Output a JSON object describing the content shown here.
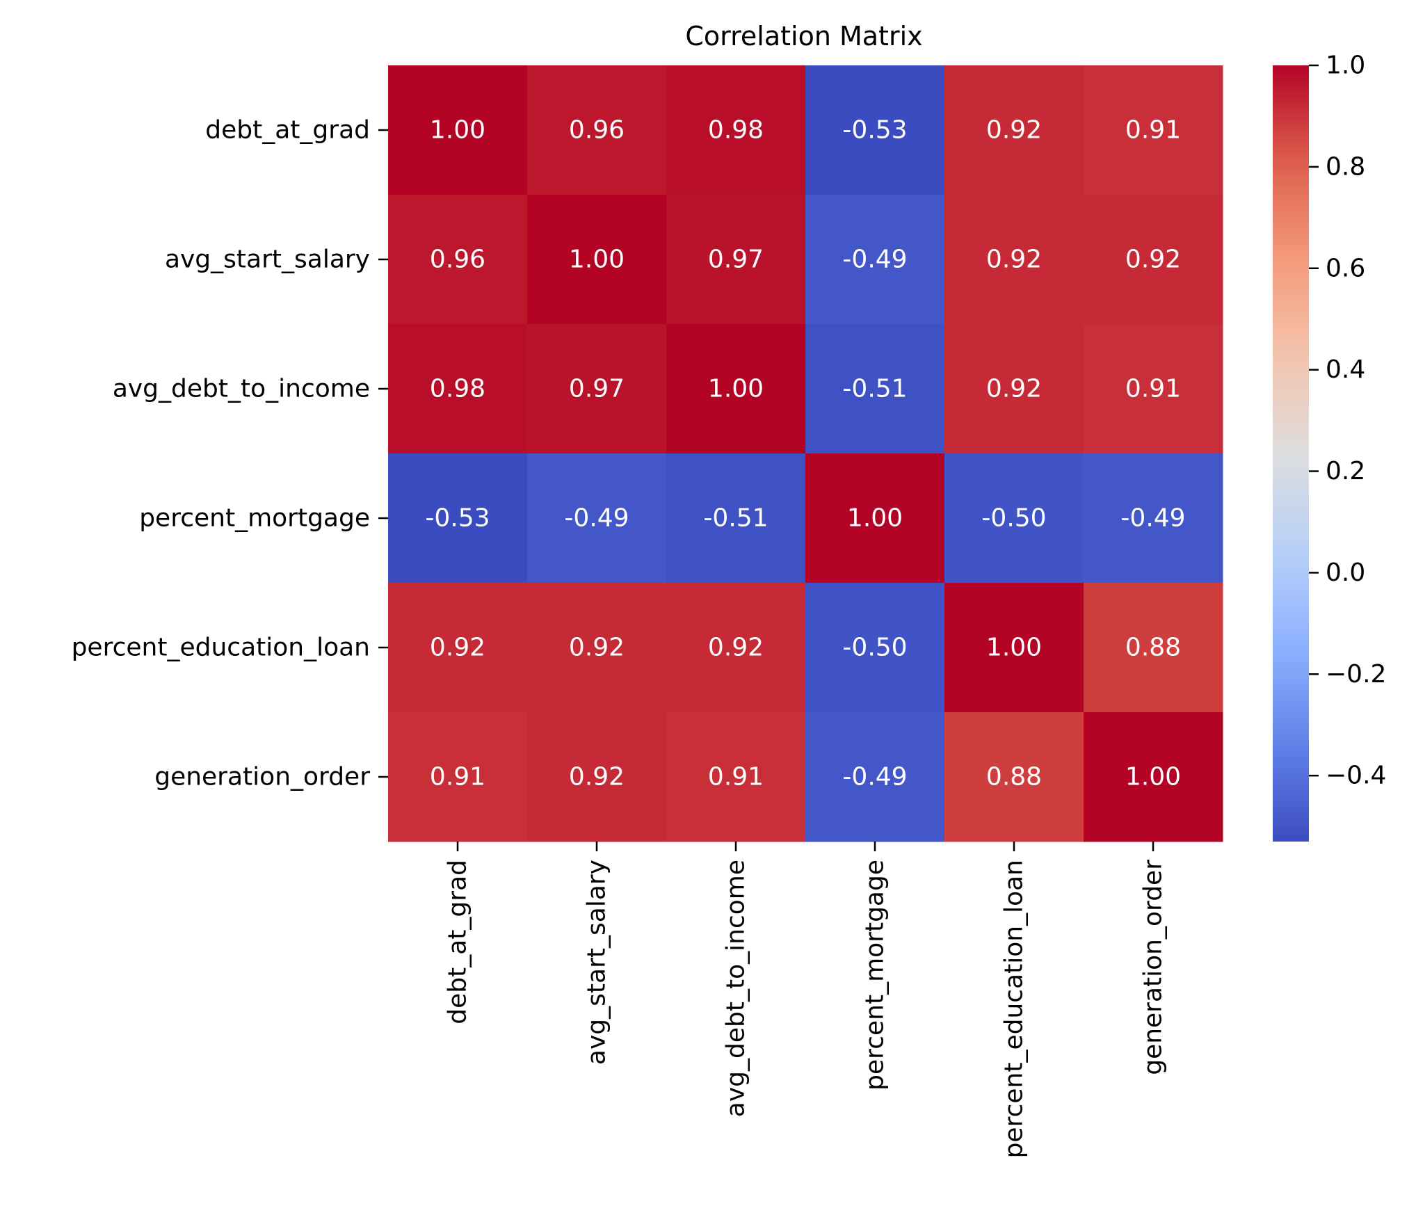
{
  "chart_data": {
    "type": "heatmap",
    "title": "Correlation Matrix",
    "xlabel": "",
    "ylabel": "",
    "rows": [
      "debt_at_grad",
      "avg_start_salary",
      "avg_debt_to_income",
      "percent_mortgage",
      "percent_education_loan",
      "generation_order"
    ],
    "columns": [
      "debt_at_grad",
      "avg_start_salary",
      "avg_debt_to_income",
      "percent_mortgage",
      "percent_education_loan",
      "generation_order"
    ],
    "values": [
      [
        1.0,
        0.96,
        0.98,
        -0.53,
        0.92,
        0.91
      ],
      [
        0.96,
        1.0,
        0.97,
        -0.49,
        0.92,
        0.92
      ],
      [
        0.98,
        0.97,
        1.0,
        -0.51,
        0.92,
        0.91
      ],
      [
        -0.53,
        -0.49,
        -0.51,
        1.0,
        -0.5,
        -0.49
      ],
      [
        0.92,
        0.92,
        0.92,
        -0.5,
        1.0,
        0.88
      ],
      [
        0.91,
        0.92,
        0.91,
        -0.49,
        0.88,
        1.0
      ]
    ],
    "value_labels": [
      [
        "1.00",
        "0.96",
        "0.98",
        "-0.53",
        "0.92",
        "0.91"
      ],
      [
        "0.96",
        "1.00",
        "0.97",
        "-0.49",
        "0.92",
        "0.92"
      ],
      [
        "0.98",
        "0.97",
        "1.00",
        "-0.51",
        "0.92",
        "0.91"
      ],
      [
        "-0.53",
        "-0.49",
        "-0.51",
        "1.00",
        "-0.50",
        "-0.49"
      ],
      [
        "0.92",
        "0.92",
        "0.92",
        "-0.50",
        "1.00",
        "0.88"
      ],
      [
        "0.91",
        "0.92",
        "0.91",
        "-0.49",
        "0.88",
        "1.00"
      ]
    ],
    "colormap": "coolwarm",
    "colorbar": {
      "vmin": -0.53,
      "vmax": 1.0,
      "ticks": [
        1.0,
        0.8,
        0.6,
        0.4,
        0.2,
        0.0,
        -0.2,
        -0.4
      ],
      "tick_labels": [
        "1.0",
        "0.8",
        "0.6",
        "0.4",
        "0.2",
        "0.0",
        "−0.2",
        "−0.4"
      ]
    },
    "grid": false,
    "legend": "colorbar-right",
    "colors": {
      "cell_text": "#ffffff",
      "axis_text": "#000000",
      "low": "#3b4cc0",
      "mid": "#dddddd",
      "high": "#b40426"
    }
  }
}
